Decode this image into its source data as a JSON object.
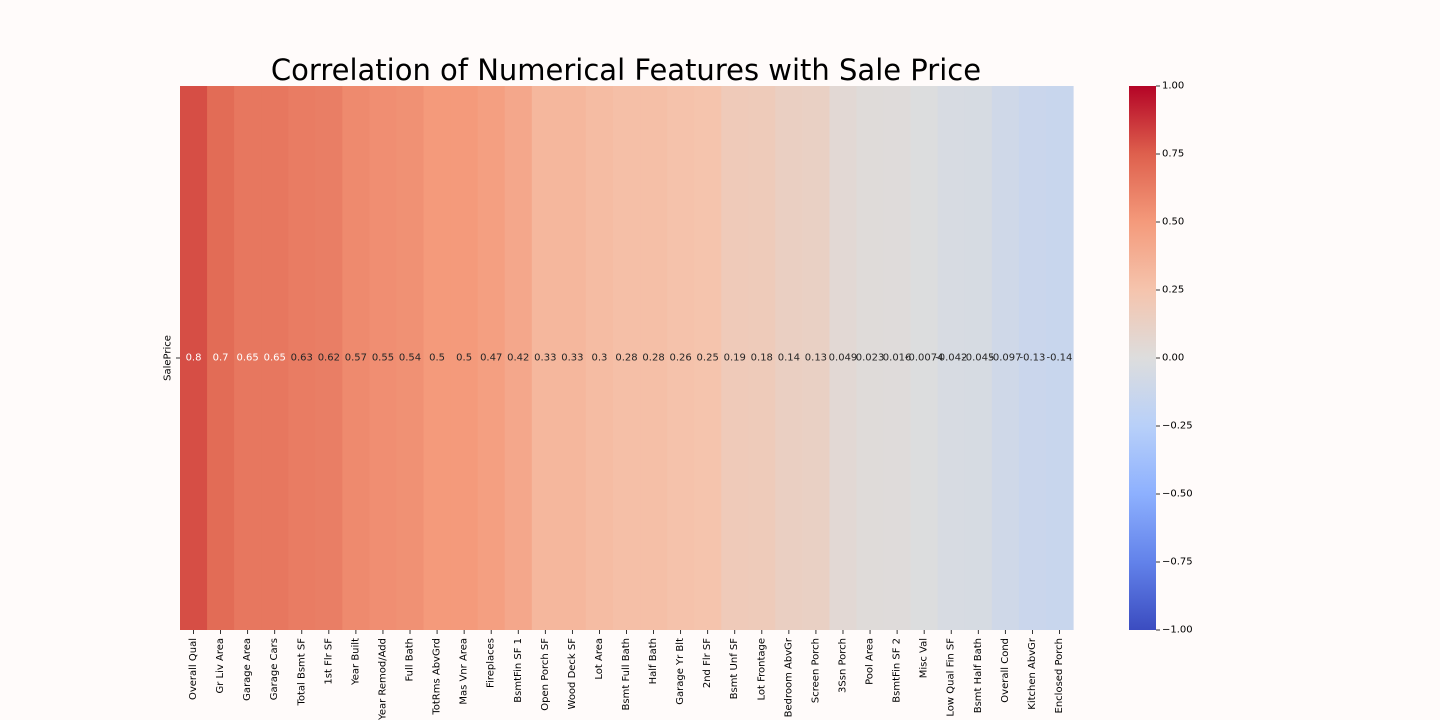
{
  "chart_data": {
    "type": "heatmap",
    "title": "Correlation of Numerical Features with Sale Price",
    "rows": [
      "SalePrice"
    ],
    "columns": [
      "Overall Qual",
      "Gr Liv Area",
      "Garage Area",
      "Garage Cars",
      "Total Bsmt SF",
      "1st Flr SF",
      "Year Built",
      "Year Remod/Add",
      "Full Bath",
      "TotRms AbvGrd",
      "Mas Vnr Area",
      "Fireplaces",
      "BsmtFin SF 1",
      "Open Porch SF",
      "Wood Deck SF",
      "Lot Area",
      "Bsmt Full Bath",
      "Half Bath",
      "Garage Yr Blt",
      "2nd Flr SF",
      "Bsmt Unf SF",
      "Lot Frontage",
      "Bedroom AbvGr",
      "Screen Porch",
      "3Ssn Porch",
      "Pool Area",
      "BsmtFin SF 2",
      "Misc Val",
      "Low Qual Fin SF",
      "Bsmt Half Bath",
      "Overall Cond",
      "Kitchen AbvGr",
      "Enclosed Porch"
    ],
    "values": [
      0.8,
      0.7,
      0.65,
      0.65,
      0.63,
      0.62,
      0.57,
      0.55,
      0.54,
      0.5,
      0.5,
      0.47,
      0.42,
      0.33,
      0.33,
      0.3,
      0.28,
      0.28,
      0.26,
      0.25,
      0.19,
      0.18,
      0.14,
      0.13,
      0.049,
      0.023,
      0.016,
      -0.0074,
      -0.042,
      -0.045,
      -0.097,
      -0.13,
      -0.14
    ],
    "labels": [
      "0.8",
      "0.7",
      "0.65",
      "0.65",
      "0.63",
      "0.62",
      "0.57",
      "0.55",
      "0.54",
      "0.5",
      "0.5",
      "0.47",
      "0.42",
      "0.33",
      "0.33",
      "0.3",
      "0.28",
      "0.28",
      "0.26",
      "0.25",
      "0.19",
      "0.18",
      "0.14",
      "0.13",
      "0.049",
      "0.023",
      "0.016",
      "-0.0074",
      "-0.042",
      "-0.045",
      "-0.097",
      "-0.13",
      "-0.14"
    ],
    "colormap": "coolwarm",
    "vmin": -1,
    "vmax": 1,
    "colorbar_ticks": [
      1.0,
      0.75,
      0.5,
      0.25,
      0.0,
      -0.25,
      -0.5,
      -0.75,
      -1.0
    ],
    "colorbar_tick_labels": [
      "1.00",
      "0.75",
      "0.50",
      "0.25",
      "0.00",
      "−0.25",
      "−0.50",
      "−0.75",
      "−1.00"
    ]
  }
}
